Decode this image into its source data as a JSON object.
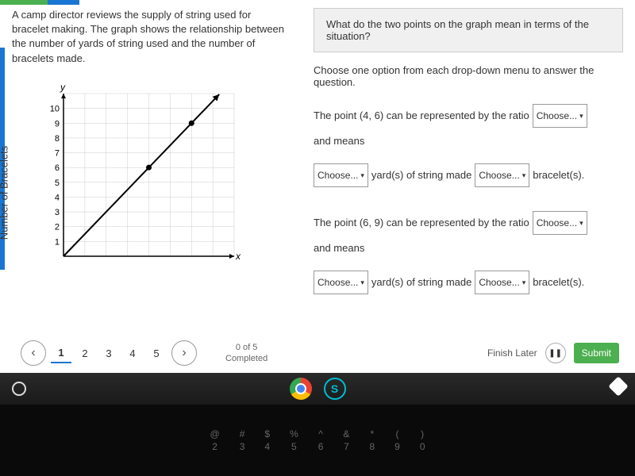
{
  "problem": {
    "text": "A camp director reviews the supply of string used for bracelet making. The graph shows the relationship between the number of yards of string used and the number of bracelets made."
  },
  "question": "What do the two points on the graph mean in terms of the situation?",
  "instruction": "Choose one option from each drop-down menu to answer the question.",
  "lines": [
    {
      "prefix": "The point (4, 6) can be represented by the ratio",
      "dd1": "Choose...",
      "suffix": "and means"
    },
    {
      "dd1": "Choose...",
      "mid": "yard(s) of string made",
      "dd2": "Choose...",
      "suffix": "bracelet(s)."
    },
    {
      "prefix": "The point (6, 9) can be represented by the ratio",
      "dd1": "Choose...",
      "suffix": "and means"
    },
    {
      "dd1": "Choose...",
      "mid": "yard(s) of string made",
      "dd2": "Choose...",
      "suffix": "bracelet(s)."
    }
  ],
  "chart": {
    "type": "line",
    "ylabel": "Number of Bracelets",
    "xlabel_glyph": "x",
    "ylabel_glyph": "y",
    "xlim": [
      0,
      8
    ],
    "ylim": [
      0,
      11
    ],
    "xticks": [
      1,
      2,
      3,
      4,
      5,
      6,
      7,
      8
    ],
    "yticks": [
      1,
      2,
      3,
      4,
      5,
      6,
      7,
      8,
      9,
      10
    ],
    "grid_color": "#cccccc",
    "axis_color": "#000000",
    "line_color": "#000000",
    "point_color": "#000000",
    "background_color": "#ffffff",
    "points": [
      [
        4,
        6
      ],
      [
        6,
        9
      ]
    ],
    "line_start": [
      0,
      0
    ],
    "line_end": [
      7.3,
      10.95
    ],
    "arrow": true,
    "line_width": 2,
    "point_radius": 3.5
  },
  "nav": {
    "pages": [
      "1",
      "2",
      "3",
      "4",
      "5"
    ],
    "active": 1,
    "progress_count": "0 of 5",
    "progress_label": "Completed",
    "finish": "Finish Later",
    "submit": "Submit"
  },
  "keyboard": [
    "@ 2",
    "# 3",
    "$ 4",
    "% 5",
    "^ 6",
    "& 7",
    "* 8",
    "( 9",
    ") 0"
  ]
}
